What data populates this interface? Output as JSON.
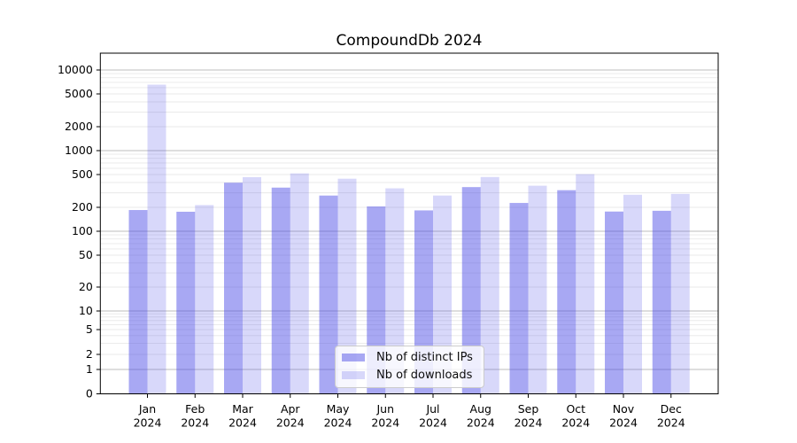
{
  "chart_data": {
    "type": "bar",
    "title": "CompoundDb 2024",
    "categories": [
      "Jan",
      "Feb",
      "Mar",
      "Apr",
      "May",
      "Jun",
      "Jul",
      "Aug",
      "Sep",
      "Oct",
      "Nov",
      "Dec"
    ],
    "year_label": "2024",
    "series": [
      {
        "name": "Nb of distinct IPs",
        "color": "#4646e6",
        "alpha": 0.47,
        "values": [
          185,
          176,
          398,
          347,
          278,
          205,
          183,
          352,
          226,
          323,
          177,
          181
        ]
      },
      {
        "name": "Nb of downloads",
        "color": "#4646e6",
        "alpha": 0.21,
        "values": [
          6540,
          213,
          465,
          517,
          445,
          340,
          278,
          467,
          366,
          506,
          284,
          291
        ]
      }
    ],
    "xlabel": "",
    "ylabel": "",
    "y_ticks": [
      0,
      1,
      2,
      5,
      10,
      20,
      50,
      100,
      200,
      500,
      1000,
      2000,
      5000,
      10000
    ],
    "y_scale": "symlog",
    "ylim": [
      0,
      10000
    ],
    "grid": "major and minor horizontal gridlines",
    "legend_position": "lower center",
    "grid_major_color": "#bdbdbd",
    "grid_minor_color": "#e8e8e8",
    "axis_color": "#000000"
  }
}
